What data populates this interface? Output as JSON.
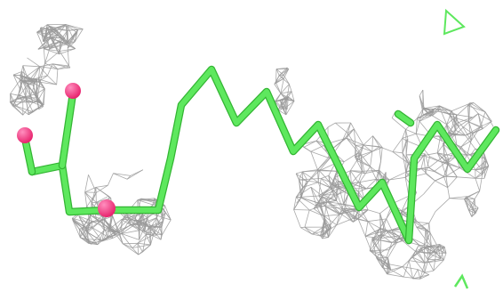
{
  "scene": {
    "background": "#ffffff",
    "mesh_color": "#9a9a9a",
    "carbon_color": "#5ee85e",
    "carbon_shadow": "#33b533",
    "oxygen_color": "#e8246e",
    "oxygen_highlight": "#ff8fbf"
  }
}
